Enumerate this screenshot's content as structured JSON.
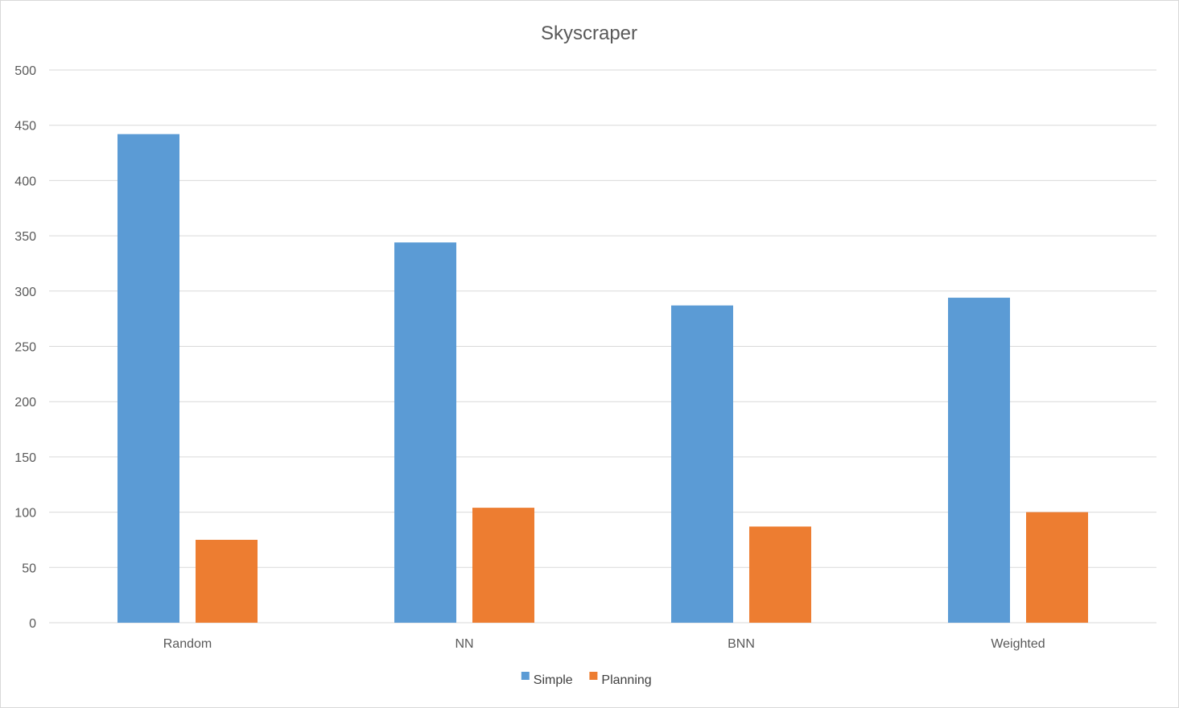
{
  "chart_data": {
    "type": "bar",
    "title": "Skyscraper",
    "xlabel": "",
    "ylabel": "",
    "categories": [
      "Random",
      "NN",
      "BNN",
      "Weighted"
    ],
    "series": [
      {
        "name": "Simple",
        "color": "#5b9bd5",
        "values": [
          442,
          344,
          287,
          294
        ]
      },
      {
        "name": "Planning",
        "color": "#ed7d31",
        "values": [
          75,
          104,
          87,
          100
        ]
      }
    ],
    "ylim": [
      0,
      500
    ],
    "yticks": [
      0,
      50,
      100,
      150,
      200,
      250,
      300,
      350,
      400,
      450,
      500
    ],
    "grid": true,
    "gridColor": "#d9d9d9",
    "legend_position": "bottom-center"
  }
}
